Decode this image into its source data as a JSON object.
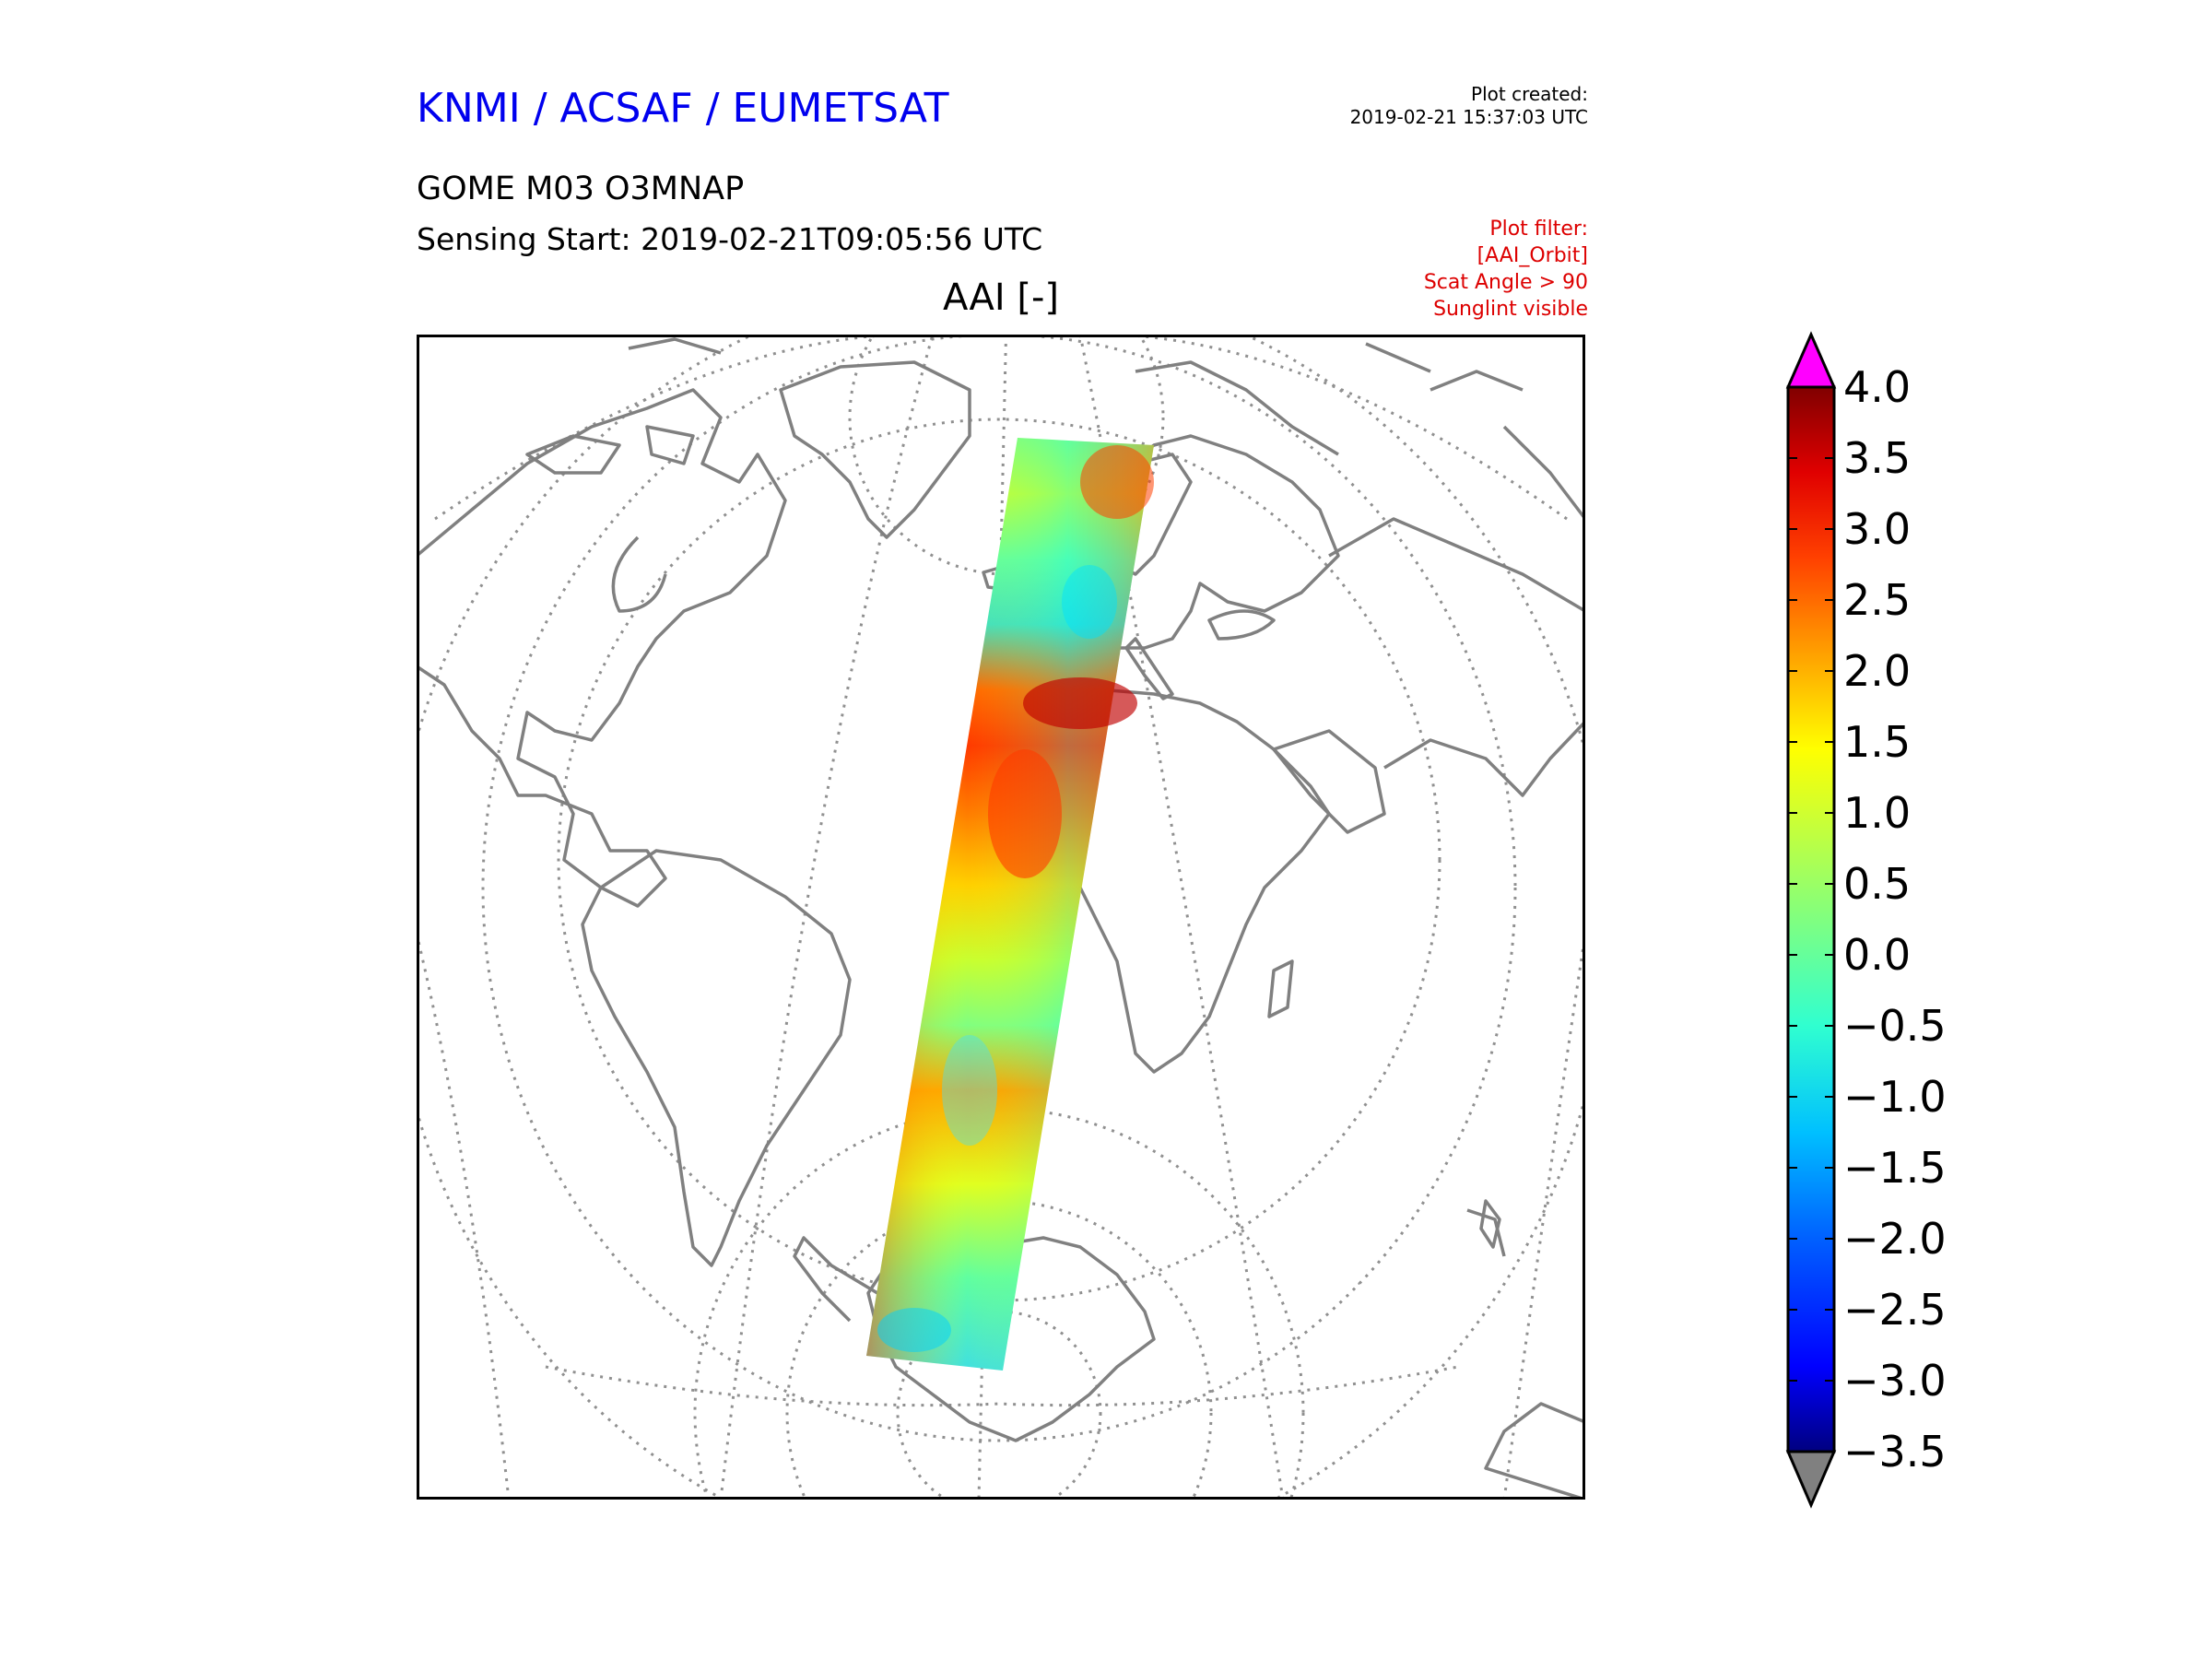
{
  "header": {
    "organization": "KNMI / ACSAF / EUMETSAT",
    "plot_created_label": "Plot created:",
    "plot_created_value": "2019-02-21 15:37:03 UTC",
    "product": "GOME M03 O3MNAP",
    "sensing_start": "Sensing Start: 2019-02-21T09:05:56 UTC",
    "filter_lines": [
      "Plot filter:",
      "[AAI_Orbit]",
      "Scat Angle > 90",
      "Sunglint visible"
    ]
  },
  "map": {
    "title": "AAI [-]",
    "projection": "orthographic",
    "swath": "GOME-2 orbit swath from Scandinavia over Europe, North Africa, the tropical Atlantic and South Atlantic to Antarctica"
  },
  "colorbar": {
    "min": -3.5,
    "max": 4.0,
    "ticks": [
      "4.0",
      "3.5",
      "3.0",
      "2.5",
      "2.0",
      "1.5",
      "1.0",
      "0.5",
      "0.0",
      "−0.5",
      "−1.0",
      "−1.5",
      "−2.0",
      "−2.5",
      "−3.0",
      "−3.5"
    ],
    "over_color": "#ff00ff",
    "under_color": "#808080",
    "colors": [
      "#000080",
      "#0000ff",
      "#0080ff",
      "#00e0ff",
      "#40ffb0",
      "#80ff80",
      "#c0ff40",
      "#ffff00",
      "#ffb000",
      "#ff6000",
      "#ff1000",
      "#c00000",
      "#800000"
    ]
  },
  "colors": {
    "coastline": "#808080",
    "graticule": "#909090",
    "org_text": "#0000ee",
    "filter_text": "#dd0000"
  }
}
